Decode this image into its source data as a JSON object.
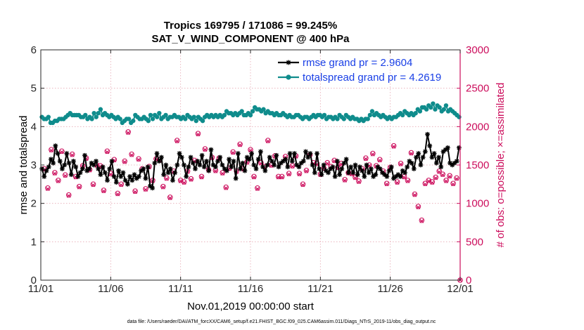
{
  "chart_data": {
    "type": "line",
    "title": "Tropics 169795 / 171086 = 99.245%",
    "subtitle": "SAT_V_WIND_COMPONENT @ 400 hPa",
    "xlabel": "Nov.01,2019 00:00:00 start",
    "ylabel_left": "rmse and totalspread",
    "ylabel_right": "# of obs: o=possible; ×=assimilated",
    "footnote": "data file: /Users/raeder/DAI/ATM_forcXX/CAM6_setup/f.e21.FHIST_BGC.f09_025.CAM6assim.011/Diags_NTrS_2019-11/obs_diag_output.nc",
    "x_range": [
      0,
      30
    ],
    "x_tick_values": [
      0,
      5,
      10,
      15,
      20,
      25,
      30
    ],
    "x_tick_labels": [
      "11/01",
      "11/06",
      "11/11",
      "11/16",
      "11/21",
      "11/26",
      "12/01"
    ],
    "ylim_left": [
      0,
      6
    ],
    "y_tick_labels_left": [
      "0",
      "1",
      "2",
      "3",
      "4",
      "5",
      "6"
    ],
    "ylim_right": [
      0,
      3000
    ],
    "y_tick_labels_right": [
      "0",
      "500",
      "1000",
      "1500",
      "2000",
      "2500",
      "3000"
    ],
    "colors": {
      "rmse": "#000000",
      "spread": "#0f8c8c",
      "obs": "#cc0d5c",
      "legend_text": "#1a40e6",
      "grid": "#e6a8b3"
    },
    "series": [
      {
        "name": "rmse grand pr = 2.9604",
        "axis": "left",
        "values": [
          2.9,
          2.7,
          2.85,
          2.95,
          3.15,
          3.05,
          3.5,
          3.3,
          3.1,
          2.9,
          3.0,
          3.3,
          3.05,
          2.75,
          3.1,
          2.95,
          2.7,
          2.8,
          2.9,
          3.25,
          2.85,
          2.9,
          3.05,
          3.0,
          3.1,
          2.9,
          2.75,
          2.95,
          2.8,
          2.6,
          2.9,
          3.1,
          2.7,
          2.55,
          2.85,
          2.7,
          2.8,
          2.6,
          2.5,
          2.7,
          2.6,
          2.75,
          2.65,
          2.7,
          2.85,
          2.9,
          2.65,
          2.95,
          2.45,
          2.4,
          3.05,
          3.3,
          3.1,
          3.2,
          2.75,
          3.0,
          2.8,
          2.9,
          2.6,
          2.8,
          3.0,
          3.3,
          3.2,
          3.0,
          2.7,
          2.95,
          3.2,
          3.05,
          2.9,
          3.1,
          3.0,
          3.25,
          2.95,
          3.1,
          2.85,
          3.4,
          3.0,
          2.95,
          3.1,
          3.2,
          3.0,
          2.9,
          2.85,
          3.15,
          2.95,
          3.1,
          2.65,
          3.3,
          2.9,
          3.05,
          2.85,
          3.2,
          3.15,
          3.3,
          3.0,
          2.9,
          3.15,
          3.35,
          2.95,
          2.85,
          3.0,
          3.2,
          3.1,
          3.0,
          3.25,
          2.95,
          3.05,
          3.1,
          3.15,
          2.95,
          3.3,
          3.1,
          3.3,
          3.0,
          2.95,
          3.05,
          3.1,
          3.35,
          3.2,
          3.3,
          3.0,
          2.8,
          3.3,
          2.9,
          2.75,
          3.0,
          2.85,
          2.8,
          2.9,
          2.95,
          2.7,
          3.1,
          2.75,
          2.9,
          3.05,
          3.15,
          2.8,
          2.95,
          2.8,
          3.0,
          2.75,
          2.95,
          2.85,
          2.7,
          3.0,
          2.8,
          2.9,
          2.7,
          2.75,
          2.95,
          2.9,
          2.8,
          2.75,
          2.7,
          2.85,
          2.95,
          2.65,
          2.7,
          2.75,
          2.7,
          2.85,
          2.8,
          2.95,
          3.1,
          3.05,
          2.9,
          3.2,
          3.3,
          3.0,
          3.2,
          3.35,
          3.8,
          3.5,
          3.2,
          3.3,
          3.05,
          3.2,
          2.95,
          3.35,
          3.4,
          3.45,
          3.05,
          3.0,
          3.05,
          3.1,
          3.45
        ]
      },
      {
        "name": "totalspread grand pr = 4.2619",
        "axis": "left",
        "values": [
          4.25,
          4.2,
          4.2,
          4.25,
          4.1,
          4.1,
          4.15,
          4.15,
          4.2,
          4.2,
          4.2,
          4.25,
          4.3,
          4.35,
          4.3,
          4.3,
          4.3,
          4.3,
          4.25,
          4.25,
          4.3,
          4.2,
          4.25,
          4.2,
          4.35,
          4.25,
          4.35,
          4.45,
          4.3,
          4.35,
          4.3,
          4.25,
          4.3,
          4.25,
          4.2,
          4.25,
          4.2,
          4.1,
          4.15,
          4.2,
          4.2,
          4.1,
          4.15,
          4.3,
          4.25,
          4.2,
          4.2,
          4.25,
          4.2,
          4.15,
          4.3,
          4.2,
          4.3,
          4.25,
          4.35,
          4.2,
          4.25,
          4.3,
          4.2,
          4.25,
          4.25,
          4.3,
          4.25,
          4.25,
          4.2,
          4.25,
          4.2,
          4.3,
          4.25,
          4.2,
          4.25,
          4.15,
          4.25,
          4.2,
          4.15,
          4.25,
          4.3,
          4.25,
          4.3,
          4.25,
          4.3,
          4.25,
          4.3,
          4.25,
          4.3,
          4.4,
          4.35,
          4.35,
          4.3,
          4.35,
          4.3,
          4.35,
          4.4,
          4.3,
          4.3,
          4.35,
          4.3,
          4.4,
          4.5,
          4.45,
          4.45,
          4.4,
          4.45,
          4.35,
          4.4,
          4.35,
          4.35,
          4.3,
          4.35,
          4.3,
          4.3,
          4.35,
          4.3,
          4.25,
          4.3,
          4.25,
          4.25,
          4.3,
          4.3,
          4.25,
          4.2,
          4.25,
          4.25,
          4.2,
          4.25,
          4.3,
          4.25,
          4.3,
          4.3,
          4.25,
          4.3,
          4.2,
          4.25,
          4.25,
          4.2,
          4.25,
          4.2,
          4.3,
          4.25,
          4.2,
          4.3,
          4.25,
          4.2,
          4.25,
          4.2,
          4.2,
          4.15,
          4.2,
          4.15,
          4.2,
          4.2,
          4.3,
          4.4,
          4.3,
          4.35,
          4.3,
          4.25,
          4.3,
          4.25,
          4.2,
          4.25,
          4.2,
          4.25,
          4.25,
          4.3,
          4.35,
          4.3,
          4.4,
          4.35,
          4.3,
          4.35,
          4.3,
          4.35,
          4.45,
          4.4,
          4.5,
          4.5,
          4.45,
          4.55,
          4.5,
          4.6,
          4.45,
          4.55,
          4.5,
          4.4,
          4.45,
          4.55,
          4.4,
          4.45,
          4.4,
          4.35,
          4.3,
          4.25
        ]
      },
      {
        "name": "# of obs possible",
        "axis": "right",
        "marker": "o",
        "x": [
          0.25,
          0.5,
          0.75,
          1.0,
          1.25,
          1.5,
          1.75,
          2.0,
          2.25,
          2.5,
          2.75,
          3.0,
          3.25,
          3.5,
          3.75,
          4.0,
          4.25,
          4.5,
          4.75,
          5.0,
          5.25,
          5.5,
          5.75,
          6.0,
          6.25,
          6.5,
          6.75,
          7.0,
          7.25,
          7.5,
          7.75,
          8.0,
          8.25,
          8.5,
          8.75,
          9.0,
          9.25,
          9.5,
          9.75,
          10.0,
          10.25,
          10.5,
          10.75,
          11.0,
          11.25,
          11.5,
          11.75,
          12.0,
          12.25,
          12.5,
          12.75,
          13.0,
          13.25,
          13.5,
          13.75,
          14.0,
          14.25,
          14.5,
          14.75,
          15.0,
          15.25,
          15.5,
          15.75,
          16.0,
          16.25,
          16.5,
          16.75,
          17.0,
          17.25,
          17.5,
          17.75,
          18.0,
          18.25,
          18.5,
          18.75,
          19.0,
          19.25,
          19.5,
          19.75,
          20.0,
          20.25,
          20.5,
          20.75,
          21.0,
          21.25,
          21.5,
          21.75,
          22.0,
          22.25,
          22.5,
          22.75,
          23.0,
          23.25,
          23.5,
          23.75,
          24.0,
          24.25,
          24.5,
          24.75,
          25.0,
          25.25,
          25.5,
          25.75,
          26.0,
          26.25,
          26.5,
          26.75,
          27.0,
          27.25,
          27.5,
          27.75,
          28.0,
          28.25,
          28.5,
          28.75,
          29.0,
          29.25,
          29.5,
          29.75,
          30.0
        ],
        "values": [
          1450,
          1200,
          1700,
          1400,
          1300,
          1680,
          1370,
          1110,
          1640,
          1350,
          1220,
          1490,
          1590,
          1440,
          1250,
          1500,
          1490,
          1170,
          1680,
          1390,
          1570,
          1130,
          1250,
          1550,
          1930,
          1640,
          1160,
          1580,
          1450,
          1190,
          1480,
          1300,
          1580,
          1570,
          1220,
          1330,
          1080,
          1420,
          1820,
          1300,
          1280,
          1420,
          1320,
          1560,
          1910,
          1350,
          1710,
          1440,
          1600,
          1430,
          1590,
          1400,
          1210,
          1460,
          1670,
          1420,
          1770,
          1450,
          1540,
          1700,
          1350,
          1200,
          1530,
          1480,
          1820,
          1500,
          1620,
          1350,
          1350,
          1610,
          1390,
          1490,
          1620,
          1390,
          1250,
          1430,
          1630,
          1530,
          1520,
          1380,
          1460,
          1530,
          1480,
          1560,
          1470,
          1520,
          1310,
          1400,
          1390,
          1340,
          1290,
          1450,
          1590,
          1500,
          1650,
          1490,
          1570,
          1420,
          1260,
          1470,
          1750,
          1280,
          1520,
          1350,
          1300,
          1660,
          1120,
          960,
          780,
          1260,
          1300,
          1280,
          1340,
          1420,
          1380,
          1300,
          1360,
          1260,
          1330,
          0
        ]
      },
      {
        "name": "# of obs assimilated",
        "axis": "right",
        "marker": "x",
        "x": [
          0.25,
          0.5,
          0.75,
          1.0,
          1.25,
          1.5,
          1.75,
          2.0,
          2.25,
          2.5,
          2.75,
          3.0,
          3.25,
          3.5,
          3.75,
          4.0,
          4.25,
          4.5,
          4.75,
          5.0,
          5.25,
          5.5,
          5.75,
          6.0,
          6.25,
          6.5,
          6.75,
          7.0,
          7.25,
          7.5,
          7.75,
          8.0,
          8.25,
          8.5,
          8.75,
          9.0,
          9.25,
          9.5,
          9.75,
          10.0,
          10.25,
          10.5,
          10.75,
          11.0,
          11.25,
          11.5,
          11.75,
          12.0,
          12.25,
          12.5,
          12.75,
          13.0,
          13.25,
          13.5,
          13.75,
          14.0,
          14.25,
          14.5,
          14.75,
          15.0,
          15.25,
          15.5,
          15.75,
          16.0,
          16.25,
          16.5,
          16.75,
          17.0,
          17.25,
          17.5,
          17.75,
          18.0,
          18.25,
          18.5,
          18.75,
          19.0,
          19.25,
          19.5,
          19.75,
          20.0,
          20.25,
          20.5,
          20.75,
          21.0,
          21.25,
          21.5,
          21.75,
          22.0,
          22.25,
          22.5,
          22.75,
          23.0,
          23.25,
          23.5,
          23.75,
          24.0,
          24.25,
          24.5,
          24.75,
          25.0,
          25.25,
          25.5,
          25.75,
          26.0,
          26.25,
          26.5,
          26.75,
          27.0,
          27.25,
          27.5,
          27.75,
          28.0,
          28.25,
          28.5,
          28.75,
          29.0,
          29.25,
          29.5,
          29.75,
          30.0
        ],
        "values": [
          1440,
          1190,
          1690,
          1390,
          1290,
          1670,
          1360,
          1100,
          1630,
          1340,
          1210,
          1480,
          1580,
          1430,
          1240,
          1490,
          1480,
          1160,
          1670,
          1380,
          1560,
          1120,
          1240,
          1540,
          1920,
          1630,
          1150,
          1570,
          1440,
          1180,
          1470,
          1290,
          1570,
          1560,
          1210,
          1320,
          1070,
          1410,
          1810,
          1290,
          1270,
          1410,
          1310,
          1550,
          1900,
          1340,
          1700,
          1430,
          1590,
          1420,
          1580,
          1390,
          1200,
          1450,
          1660,
          1410,
          1760,
          1440,
          1530,
          1690,
          1340,
          1190,
          1520,
          1470,
          1810,
          1490,
          1610,
          1340,
          1340,
          1600,
          1380,
          1480,
          1610,
          1380,
          1240,
          1420,
          1620,
          1520,
          1510,
          1370,
          1450,
          1520,
          1470,
          1550,
          1460,
          1510,
          1300,
          1390,
          1380,
          1330,
          1280,
          1440,
          1580,
          1490,
          1640,
          1480,
          1560,
          1410,
          1250,
          1460,
          1740,
          1270,
          1510,
          1340,
          1290,
          1650,
          1110,
          950,
          770,
          1250,
          1290,
          1270,
          1330,
          1410,
          1370,
          1290,
          1350,
          1250,
          1320,
          0
        ]
      }
    ]
  }
}
